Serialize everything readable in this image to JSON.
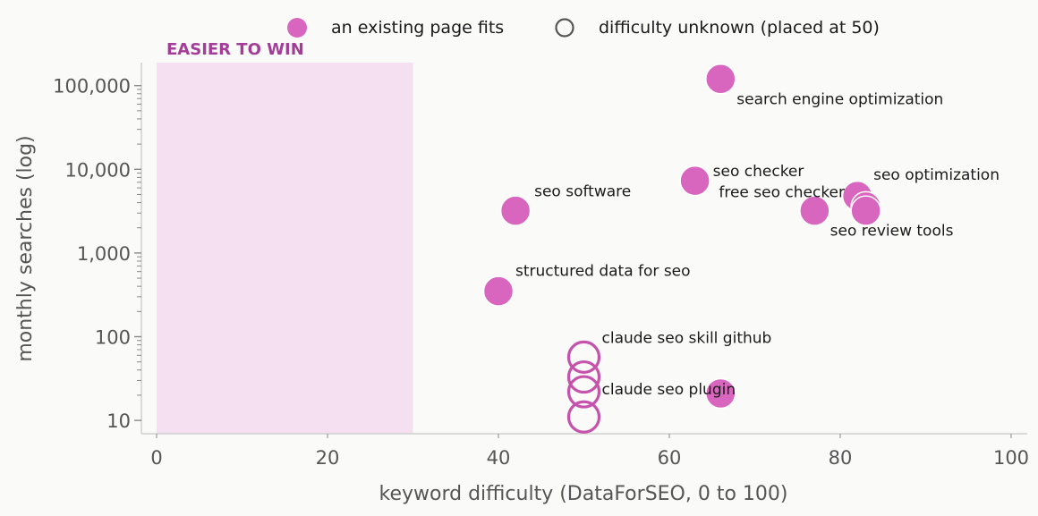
{
  "legend": {
    "filled_label": "an existing page fits",
    "open_label": "difficulty unknown (placed at 50)"
  },
  "zone_label": "EASIER TO WIN",
  "colors": {
    "point": "#d966be",
    "point_stroke": "#c653ab",
    "zone": "#f5e0f1",
    "zone_text": "#a33d97",
    "axis": "#cfcfcf",
    "tick_text": "#555555"
  },
  "chart_data": {
    "type": "scatter",
    "xlabel": "keyword difficulty (DataForSEO, 0 to 100)",
    "ylabel": "monthly searches (log)",
    "xlim": [
      0,
      100
    ],
    "ylim": [
      9,
      200000
    ],
    "yscale": "log",
    "x_ticks": [
      0,
      20,
      40,
      60,
      80,
      100
    ],
    "x_tick_labels": [
      "0",
      "20",
      "40",
      "60",
      "80",
      "100"
    ],
    "y_ticks": [
      10,
      100,
      1000,
      10000,
      100000
    ],
    "y_tick_labels": [
      "10",
      "100",
      "1,000",
      "10,000",
      "100,000"
    ],
    "shaded_region": {
      "x_from": 0,
      "x_to": 30,
      "label": "EASIER TO WIN"
    },
    "grid": false,
    "legend_position": "top",
    "points": [
      {
        "x": 66,
        "y": 120000,
        "kind": "filled",
        "label": "search engine optimization"
      },
      {
        "x": 63,
        "y": 7300,
        "kind": "filled",
        "label": "seo checker"
      },
      {
        "x": 42,
        "y": 3200,
        "kind": "filled",
        "label": "seo software"
      },
      {
        "x": 77,
        "y": 3200,
        "kind": "filled",
        "label": "free seo checker"
      },
      {
        "x": 82,
        "y": 4800,
        "kind": "filled",
        "label": "seo optimization"
      },
      {
        "x": 83,
        "y": 3600,
        "kind": "filled",
        "label": ""
      },
      {
        "x": 83,
        "y": 3200,
        "kind": "filled",
        "label": "seo review tools"
      },
      {
        "x": 40,
        "y": 350,
        "kind": "filled",
        "label": "structured data for seo"
      },
      {
        "x": 66,
        "y": 21,
        "kind": "filled",
        "label": ""
      },
      {
        "x": 50,
        "y": 57,
        "kind": "open",
        "label": "claude seo skill github"
      },
      {
        "x": 50,
        "y": 33,
        "kind": "open",
        "label": ""
      },
      {
        "x": 50,
        "y": 22,
        "kind": "open",
        "label": "claude seo plugin"
      },
      {
        "x": 50,
        "y": 11,
        "kind": "open",
        "label": ""
      }
    ]
  }
}
